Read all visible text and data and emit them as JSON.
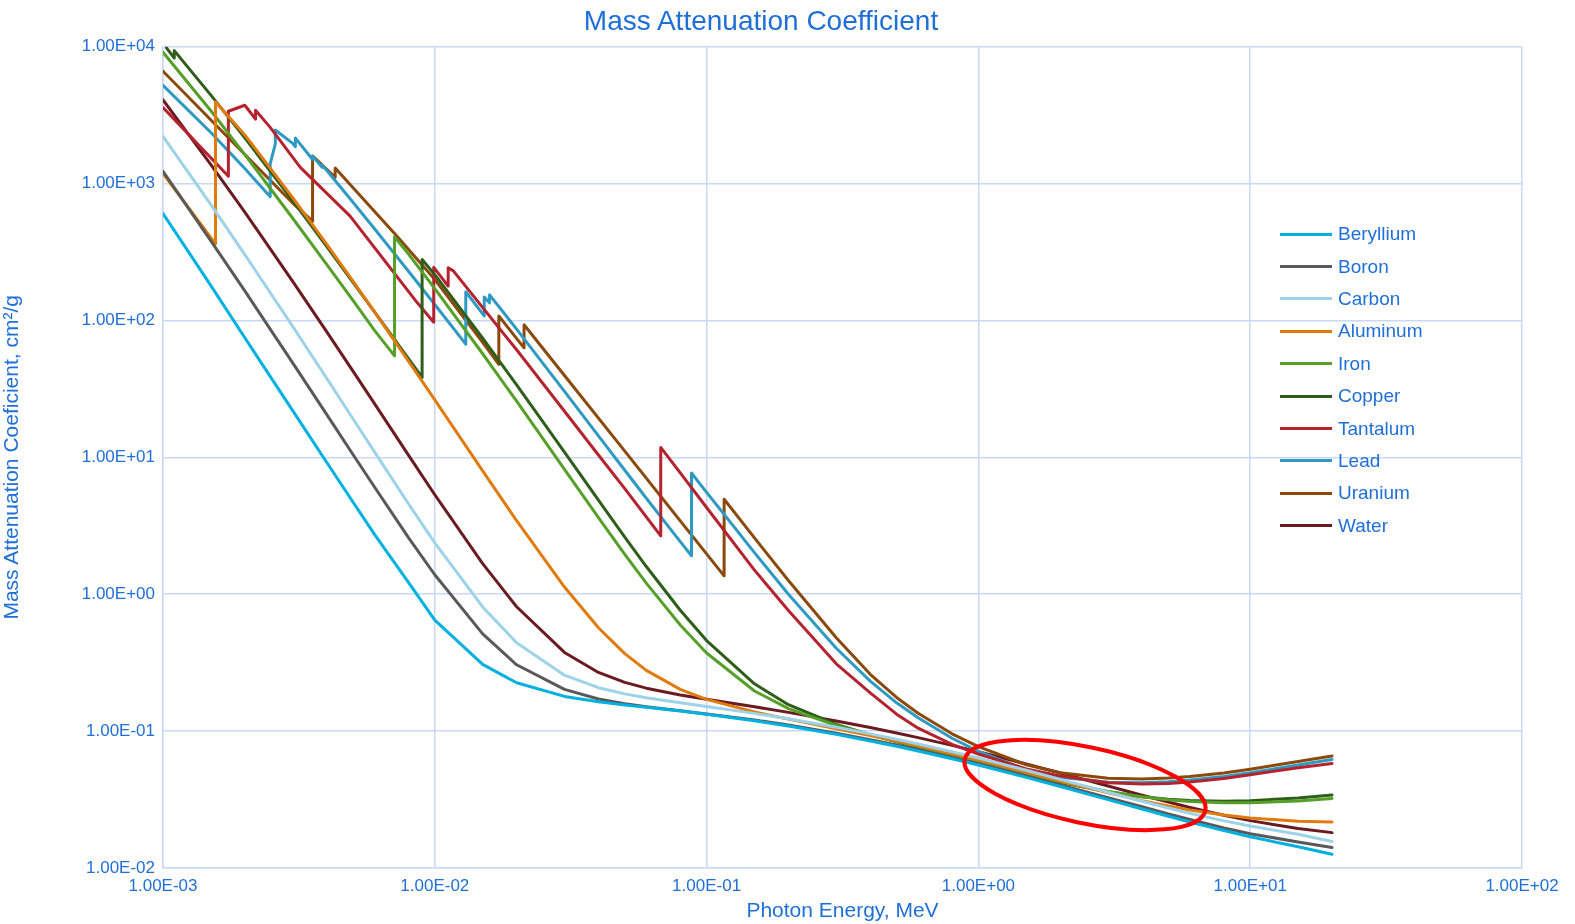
{
  "chart_data": {
    "type": "line",
    "title": "Mass Attenuation Coefficient",
    "xlabel": "Photon Energy, MeV",
    "ylabel": "Mass Attenuation Coeficient, cm²/g",
    "log": "xy",
    "grid": true,
    "legend": "right",
    "marker": "none",
    "xlim": [
      0.001,
      100
    ],
    "ylim": [
      0.01,
      10000
    ],
    "xticks": [
      {
        "value": 0.001,
        "label": "1.00E-03"
      },
      {
        "value": 0.01,
        "label": "1.00E-02"
      },
      {
        "value": 0.1,
        "label": "1.00E-01"
      },
      {
        "value": 1,
        "label": "1.00E+00"
      },
      {
        "value": 10,
        "label": "1.00E+01"
      },
      {
        "value": 100,
        "label": "1.00E+02"
      }
    ],
    "yticks": [
      {
        "value": 0.01,
        "label": "1.00E-02"
      },
      {
        "value": 0.1,
        "label": "1.00E-01"
      },
      {
        "value": 1,
        "label": "1.00E+00"
      },
      {
        "value": 10,
        "label": "1.00E+01"
      },
      {
        "value": 100,
        "label": "1.00E+02"
      },
      {
        "value": 1000,
        "label": "1.00E+03"
      },
      {
        "value": 10000,
        "label": "1.00E+04"
      }
    ],
    "series": [
      {
        "name": "Beryllium",
        "color": "#00b0e0",
        "x": [
          0.001,
          0.0015,
          0.002,
          0.003,
          0.004,
          0.005,
          0.006,
          0.008,
          0.01,
          0.015,
          0.02,
          0.03,
          0.04,
          0.05,
          0.06,
          0.08,
          0.1,
          0.15,
          0.2,
          0.3,
          0.4,
          0.5,
          0.6,
          0.8,
          1,
          1.5,
          2,
          3,
          4,
          5,
          6,
          8,
          10,
          15,
          20
        ],
        "values": [
          604,
          179.7,
          74.69,
          21.92,
          9.207,
          4.717,
          2.732,
          1.22,
          0.6466,
          0.307,
          0.2255,
          0.1792,
          0.164,
          0.1554,
          0.1493,
          0.1401,
          0.1328,
          0.119,
          0.1089,
          0.09463,
          0.08471,
          0.07739,
          0.07155,
          0.06286,
          0.05653,
          0.0459,
          0.0394,
          0.0316,
          0.027,
          0.0239,
          0.0217,
          0.0188,
          0.0169,
          0.0143,
          0.0126
        ]
      },
      {
        "name": "Boron",
        "color": "#595959",
        "x": [
          0.001,
          0.0015,
          0.002,
          0.003,
          0.004,
          0.005,
          0.006,
          0.008,
          0.01,
          0.015,
          0.02,
          0.03,
          0.04,
          0.05,
          0.06,
          0.08,
          0.1,
          0.15,
          0.2,
          0.3,
          0.4,
          0.5,
          0.6,
          0.8,
          1,
          1.5,
          2,
          3,
          4,
          5,
          6,
          8,
          10,
          15,
          20
        ],
        "values": [
          1229,
          380.9,
          164.3,
          48.96,
          20.6,
          10.48,
          6.07,
          2.59,
          1.387,
          0.5132,
          0.3051,
          0.2019,
          0.1714,
          0.1582,
          0.1504,
          0.1406,
          0.1335,
          0.1206,
          0.1107,
          0.09658,
          0.0866,
          0.07914,
          0.07319,
          0.06431,
          0.05783,
          0.04703,
          0.0404,
          0.03259,
          0.028,
          0.0248,
          0.0226,
          0.0196,
          0.0178,
          0.0155,
          0.0141
        ]
      },
      {
        "name": "Carbon",
        "color": "#9dd3e8",
        "x": [
          0.001,
          0.0015,
          0.002,
          0.003,
          0.004,
          0.005,
          0.006,
          0.008,
          0.01,
          0.015,
          0.02,
          0.03,
          0.04,
          0.05,
          0.06,
          0.08,
          0.1,
          0.15,
          0.2,
          0.3,
          0.4,
          0.5,
          0.6,
          0.8,
          1,
          1.5,
          2,
          3,
          4,
          5,
          6,
          8,
          10,
          15,
          20
        ],
        "values": [
          2211,
          700.2,
          302.6,
          90.33,
          37.78,
          19.12,
          10.95,
          4.576,
          2.373,
          0.8071,
          0.442,
          0.2562,
          0.2076,
          0.1871,
          0.1753,
          0.161,
          0.1514,
          0.1347,
          0.1229,
          0.1066,
          0.09546,
          0.08715,
          0.08058,
          0.07076,
          0.06361,
          0.05176,
          0.04442,
          0.03574,
          0.03073,
          0.02742,
          0.02511,
          0.02209,
          0.02025,
          0.01762,
          0.0156
        ]
      },
      {
        "name": "Aluminum",
        "color": "#e07b10",
        "x": [
          0.001,
          0.0015,
          0.00156,
          0.00156,
          0.002,
          0.003,
          0.004,
          0.005,
          0.006,
          0.008,
          0.01,
          0.015,
          0.02,
          0.03,
          0.04,
          0.05,
          0.06,
          0.08,
          0.1,
          0.15,
          0.2,
          0.3,
          0.4,
          0.5,
          0.6,
          0.8,
          1,
          1.5,
          2,
          3,
          4,
          5,
          6,
          8,
          10,
          15,
          20
        ],
        "values": [
          1185,
          402.2,
          362.1,
          3957,
          2263,
          788,
          360.5,
          193.4,
          115.3,
          50.33,
          26.23,
          7.955,
          3.441,
          1.128,
          0.5685,
          0.3681,
          0.2778,
          0.2018,
          0.1704,
          0.1378,
          0.1223,
          0.1042,
          0.09276,
          0.08445,
          0.07802,
          0.06841,
          0.06146,
          0.05006,
          0.04324,
          0.03541,
          0.03106,
          0.02836,
          0.02655,
          0.02437,
          0.02318,
          0.02195,
          0.02171
        ]
      },
      {
        "name": "Iron",
        "color": "#56a02a",
        "x": [
          0.001,
          0.0015,
          0.002,
          0.003,
          0.004,
          0.005,
          0.006,
          0.00711,
          0.00711,
          0.008,
          0.01,
          0.015,
          0.02,
          0.03,
          0.04,
          0.05,
          0.06,
          0.08,
          0.1,
          0.15,
          0.2,
          0.3,
          0.4,
          0.5,
          0.6,
          0.8,
          1,
          1.5,
          2,
          3,
          4,
          5,
          6,
          8,
          10,
          15,
          20
        ],
        "values": [
          9085,
          3399,
          1626,
          557.6,
          256.7,
          139.8,
          84.63,
          55.1,
          407.6,
          305.6,
          170.6,
          57.08,
          25.68,
          8.176,
          3.629,
          1.958,
          1.205,
          0.5952,
          0.3717,
          0.1964,
          0.146,
          0.1099,
          0.094,
          0.08414,
          0.07704,
          0.06699,
          0.05995,
          0.04883,
          0.04265,
          0.03621,
          0.03312,
          0.03146,
          0.03057,
          0.02991,
          0.02994,
          0.03092,
          0.03224
        ]
      },
      {
        "name": "Copper",
        "color": "#2e5e1a",
        "x": [
          0.00103,
          0.0011,
          0.0011,
          0.0015,
          0.002,
          0.003,
          0.004,
          0.005,
          0.006,
          0.008,
          0.00898,
          0.00898,
          0.01,
          0.015,
          0.02,
          0.03,
          0.04,
          0.05,
          0.06,
          0.08,
          0.1,
          0.15,
          0.2,
          0.3,
          0.4,
          0.5,
          0.6,
          0.8,
          1,
          1.5,
          2,
          3,
          4,
          5,
          6,
          8,
          10,
          15,
          20
        ],
        "values": [
          9800,
          8242,
          9347,
          4418,
          2154,
          748.8,
          347.3,
          189.9,
          115.6,
          52.55,
          38.29,
          278.4,
          215.9,
          74.05,
          33.79,
          10.92,
          4.862,
          2.613,
          1.593,
          0.763,
          0.4584,
          0.2217,
          0.1559,
          0.1119,
          0.09413,
          0.08362,
          0.07625,
          0.06605,
          0.05901,
          0.04803,
          0.04205,
          0.03599,
          0.03318,
          0.03177,
          0.03108,
          0.03074,
          0.03103,
          0.03247,
          0.03408
        ]
      },
      {
        "name": "Tantalum",
        "color": "#b5232f",
        "x": [
          0.001,
          0.00174,
          0.00174,
          0.002,
          0.00219,
          0.00219,
          0.00248,
          0.0032,
          0.00488,
          0.00861,
          0.00991,
          0.00991,
          0.0112,
          0.0112,
          0.0117,
          0.02,
          0.03,
          0.04,
          0.05,
          0.0678,
          0.0678,
          0.08,
          0.1,
          0.15,
          0.2,
          0.3,
          0.4,
          0.5,
          0.6,
          0.8,
          1,
          1.5,
          2,
          3,
          4,
          5,
          6,
          8,
          10,
          15,
          20
        ],
        "values": [
          3590,
          1130,
          3370,
          3730,
          2950,
          3430,
          2570,
          1310,
          577,
          135,
          97,
          244,
          178,
          242,
          230,
          61,
          21.7,
          10.4,
          5.9,
          2.67,
          11.8,
          7.7,
          4.3,
          1.5,
          0.76,
          0.31,
          0.19,
          0.133,
          0.105,
          0.08,
          0.068,
          0.053,
          0.047,
          0.042,
          0.041,
          0.0415,
          0.0425,
          0.045,
          0.048,
          0.054,
          0.058
        ]
      },
      {
        "name": "Lead",
        "color": "#2e9ac4",
        "x": [
          0.001,
          0.0015,
          0.002,
          0.00248,
          0.00248,
          0.00259,
          0.00259,
          0.003,
          0.00307,
          0.00307,
          0.00355,
          0.00355,
          0.00385,
          0.00385,
          0.004,
          0.005,
          0.006,
          0.008,
          0.01,
          0.013,
          0.013,
          0.0152,
          0.0152,
          0.0159,
          0.0159,
          0.02,
          0.03,
          0.04,
          0.05,
          0.06,
          0.08,
          0.088,
          0.088,
          0.1,
          0.15,
          0.2,
          0.3,
          0.4,
          0.5,
          0.6,
          0.8,
          1,
          1.5,
          2,
          3,
          4,
          5,
          6,
          8,
          10,
          15,
          20
        ],
        "values": [
          5210,
          2356,
          1285,
          800.6,
          1397,
          1944,
          2458,
          1965,
          1857,
          2146,
          1496,
          1585,
          1311,
          1368,
          1251,
          730.4,
          467.2,
          228.7,
          130.6,
          67.01,
          162,
          107.8,
          148.5,
          134.4,
          153.7,
          86.36,
          30.32,
          14.36,
          8.041,
          5.021,
          2.419,
          1.91,
          7.683,
          5.549,
          2.014,
          0.999,
          0.403,
          0.232,
          0.161,
          0.125,
          0.0887,
          0.071,
          0.0522,
          0.0461,
          0.0423,
          0.042,
          0.0427,
          0.0439,
          0.0466,
          0.0497,
          0.0565,
          0.0621
        ]
      },
      {
        "name": "Uranium",
        "color": "#8b4a0b",
        "x": [
          0.001,
          0.002,
          0.003,
          0.00355,
          0.00355,
          0.0043,
          0.0043,
          0.00726,
          0.01,
          0.015,
          0.0172,
          0.0172,
          0.0213,
          0.0213,
          0.03,
          0.05,
          0.08,
          0.116,
          0.116,
          0.15,
          0.2,
          0.3,
          0.4,
          0.5,
          0.6,
          0.8,
          1,
          1.5,
          2,
          3,
          4,
          5,
          6,
          8,
          10,
          15,
          20
        ],
        "values": [
          6610,
          1630,
          720,
          531,
          1590,
          1110,
          1300,
          412,
          199,
          69,
          47.7,
          107.6,
          63,
          93,
          39.6,
          11.1,
          3.43,
          1.36,
          4.94,
          2.58,
          1.26,
          0.481,
          0.26,
          0.176,
          0.135,
          0.0955,
          0.0771,
          0.0567,
          0.0496,
          0.0452,
          0.0447,
          0.0454,
          0.0466,
          0.0495,
          0.0527,
          0.06,
          0.0658
        ]
      },
      {
        "name": "Water",
        "color": "#6b1b1f",
        "x": [
          0.001,
          0.0015,
          0.002,
          0.003,
          0.004,
          0.005,
          0.006,
          0.008,
          0.01,
          0.015,
          0.02,
          0.03,
          0.04,
          0.05,
          0.06,
          0.08,
          0.1,
          0.15,
          0.2,
          0.3,
          0.4,
          0.5,
          0.6,
          0.8,
          1,
          1.5,
          2,
          3,
          4,
          5,
          6,
          8,
          10,
          15,
          20
        ],
        "values": [
          4078,
          1376,
          617.3,
          192.9,
          82.78,
          42.58,
          24.64,
          10.37,
          5.329,
          1.673,
          0.8096,
          0.3756,
          0.2683,
          0.2269,
          0.2059,
          0.1837,
          0.1707,
          0.1505,
          0.137,
          0.1186,
          0.1061,
          0.09687,
          0.08956,
          0.07865,
          0.07072,
          0.05754,
          0.04942,
          0.03969,
          0.03403,
          0.03031,
          0.0277,
          0.02429,
          0.02219,
          0.01941,
          0.01813
        ]
      }
    ]
  }
}
